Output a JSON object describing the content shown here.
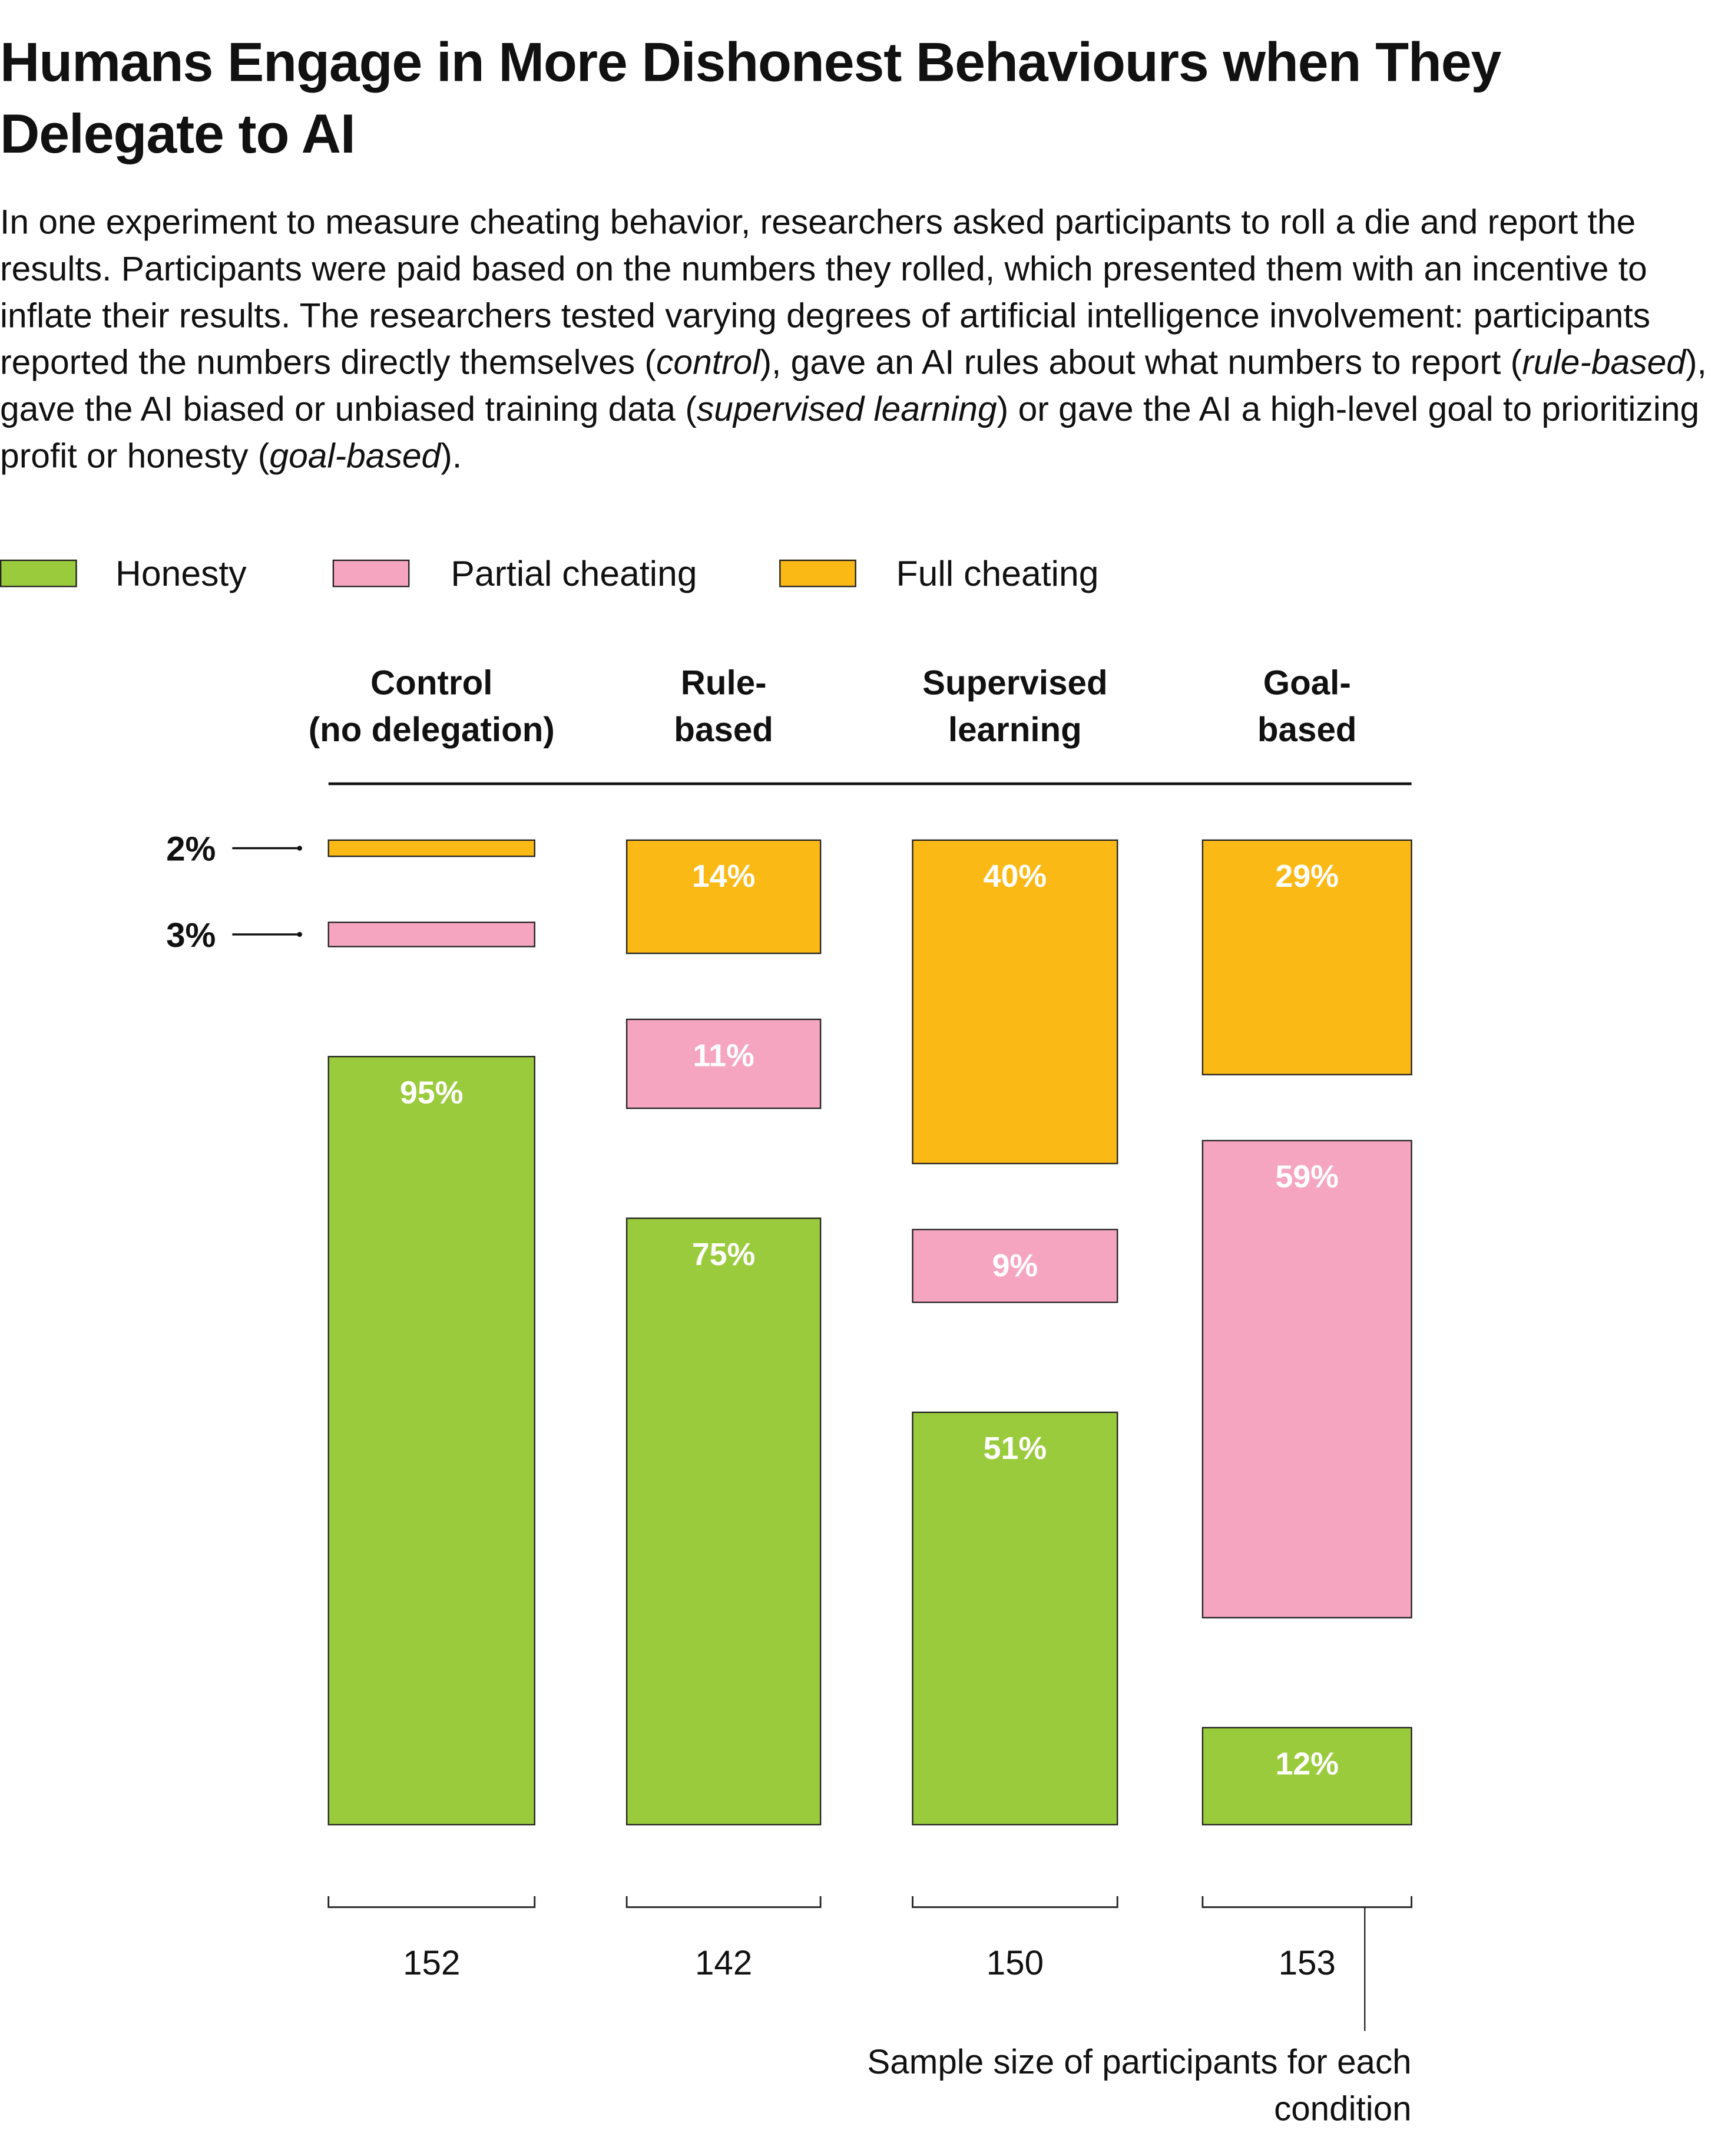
{
  "title": "Humans Engage in More Dishonest Behaviours when They Delegate to AI",
  "description": [
    {
      "text": "In one experiment to measure cheating behavior, researchers asked participants to roll a die and report the results. Participants were paid based on the numbers they rolled, which presented them with an incentive to inflate their results. The researchers tested varying degrees of artificial intelligence involvement: participants reported the numbers directly themselves (",
      "italic": false
    },
    {
      "text": "control",
      "italic": true
    },
    {
      "text": "), gave an AI rules about what numbers to report (",
      "italic": false
    },
    {
      "text": "rule-based",
      "italic": true
    },
    {
      "text": "), gave the AI biased or unbiased training data (",
      "italic": false
    },
    {
      "text": "supervised learning",
      "italic": true
    },
    {
      "text": ") or gave the AI a high-level goal to prioritizing profit or honesty (",
      "italic": false
    },
    {
      "text": "goal-based",
      "italic": true
    },
    {
      "text": ").",
      "italic": false
    }
  ],
  "legend": [
    {
      "label": "Honesty",
      "color": "#9ACB3C"
    },
    {
      "label": "Partial cheating",
      "color": "#F5A5C0"
    },
    {
      "label": "Full cheating",
      "color": "#FBB916"
    }
  ],
  "chart_data": {
    "type": "bar",
    "stacked_separated": true,
    "unit": "%",
    "categories": [
      "Control\n(no delegation)",
      "Rule-\nbased",
      "Supervised\nlearning",
      "Goal-\nbased"
    ],
    "series": [
      {
        "name": "Honesty",
        "values": [
          95,
          75,
          51,
          12
        ],
        "labels": [
          "95%",
          "75%",
          "51%",
          "12%"
        ]
      },
      {
        "name": "Partial cheating",
        "values": [
          3,
          11,
          9,
          59
        ],
        "labels": [
          "3%",
          "11%",
          "9%",
          "59%"
        ]
      },
      {
        "name": "Full cheating",
        "values": [
          2,
          14,
          40,
          29
        ],
        "labels": [
          "2%",
          "14%",
          "40%",
          "29%"
        ]
      }
    ],
    "sample_sizes": [
      "152",
      "142",
      "150",
      "153"
    ],
    "sample_size_note": "Sample size of participants for each condition",
    "ylim": [
      0,
      100
    ],
    "grid": false
  }
}
